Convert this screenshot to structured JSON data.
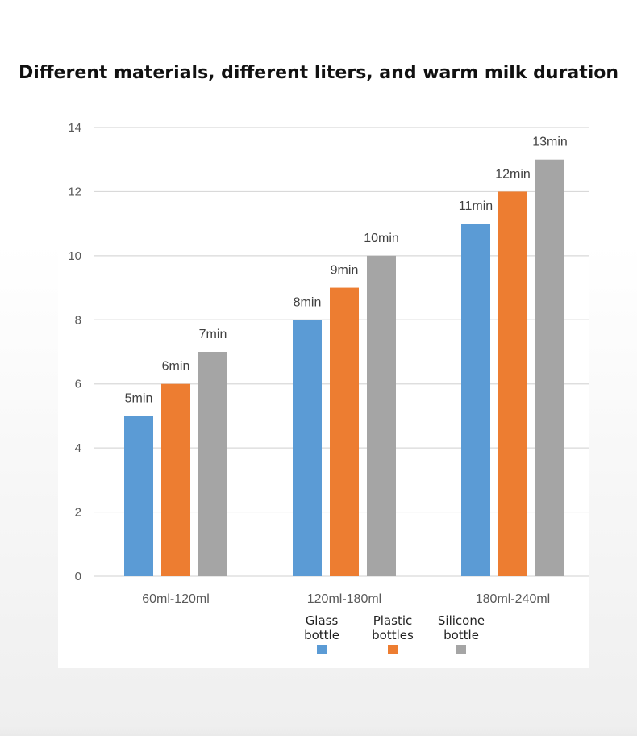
{
  "colors": {
    "glass": "#5b9bd5",
    "plastic": "#ed7d31",
    "silicone": "#a5a5a5",
    "grid": "#d9d9d9"
  },
  "chart_data": {
    "type": "bar",
    "title": "Different materials, different liters, and warm milk duration",
    "categories": [
      "60ml-120ml",
      "120ml-180ml",
      "180ml-240ml"
    ],
    "series": [
      {
        "name": "Glass bottle",
        "legend_lines": [
          "Glass",
          "bottle"
        ],
        "values": [
          5,
          8,
          11
        ],
        "labels": [
          "5min",
          "8min",
          "11min"
        ],
        "color": "#5b9bd5"
      },
      {
        "name": "Plastic bottles",
        "legend_lines": [
          "Plastic",
          "bottles"
        ],
        "values": [
          6,
          9,
          12
        ],
        "labels": [
          "6min",
          "9min",
          "12min"
        ],
        "color": "#ed7d31"
      },
      {
        "name": "Silicone bottle",
        "legend_lines": [
          "Silicone",
          "bottle"
        ],
        "values": [
          7,
          10,
          13
        ],
        "labels": [
          "7min",
          "10min",
          "13min"
        ],
        "color": "#a5a5a5"
      }
    ],
    "yticks": [
      "0",
      "2",
      "4",
      "6",
      "8",
      "10",
      "12",
      "14"
    ],
    "ylim": [
      0,
      14
    ],
    "grid": true,
    "legend_position": "bottom"
  }
}
